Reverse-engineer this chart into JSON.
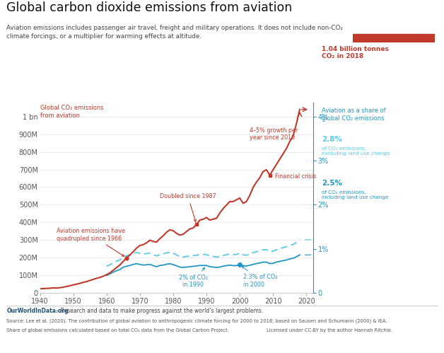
{
  "title": "Global carbon dioxide emissions from aviation",
  "subtitle1": "Aviation emissions includes passenger air travel, freight and military operations. It does not include non-CO₂",
  "subtitle2": "climate forcings, or a multiplier for warming effects at altitude.",
  "bg_color": "#ffffff",
  "red_color": "#c0392b",
  "blue_solid_color": "#2196c4",
  "blue_dashed_color": "#5bc8e8",
  "grid_color": "#e8e8e8",
  "years_red": [
    1940,
    1941,
    1942,
    1943,
    1944,
    1945,
    1946,
    1947,
    1948,
    1949,
    1950,
    1951,
    1952,
    1953,
    1954,
    1955,
    1956,
    1957,
    1958,
    1959,
    1960,
    1961,
    1962,
    1963,
    1964,
    1965,
    1966,
    1967,
    1968,
    1969,
    1970,
    1971,
    1972,
    1973,
    1974,
    1975,
    1976,
    1977,
    1978,
    1979,
    1980,
    1981,
    1982,
    1983,
    1984,
    1985,
    1986,
    1987,
    1988,
    1989,
    1990,
    1991,
    1992,
    1993,
    1994,
    1995,
    1996,
    1997,
    1998,
    1999,
    2000,
    2001,
    2002,
    2003,
    2004,
    2005,
    2006,
    2007,
    2008,
    2009,
    2010,
    2011,
    2012,
    2013,
    2014,
    2015,
    2016,
    2017,
    2018
  ],
  "values_red_M": [
    24,
    25,
    26,
    27,
    29,
    28,
    30,
    33,
    37,
    41,
    46,
    50,
    55,
    60,
    65,
    71,
    77,
    83,
    88,
    95,
    104,
    114,
    129,
    144,
    159,
    179,
    199,
    215,
    234,
    254,
    269,
    274,
    284,
    299,
    292,
    288,
    308,
    324,
    344,
    358,
    353,
    338,
    328,
    333,
    348,
    363,
    368,
    388,
    413,
    418,
    428,
    413,
    418,
    423,
    453,
    478,
    498,
    518,
    518,
    528,
    538,
    508,
    518,
    553,
    598,
    628,
    653,
    688,
    698,
    668,
    698,
    728,
    758,
    788,
    818,
    858,
    888,
    958,
    1040
  ],
  "years_blue": [
    1960,
    1961,
    1962,
    1963,
    1964,
    1965,
    1966,
    1967,
    1968,
    1969,
    1970,
    1971,
    1972,
    1973,
    1974,
    1975,
    1976,
    1977,
    1978,
    1979,
    1980,
    1981,
    1982,
    1983,
    1984,
    1985,
    1986,
    1987,
    1988,
    1989,
    1990,
    1991,
    1992,
    1993,
    1994,
    1995,
    1996,
    1997,
    1998,
    1999,
    2000,
    2001,
    2002,
    2003,
    2004,
    2005,
    2006,
    2007,
    2008,
    2009,
    2010,
    2011,
    2012,
    2013,
    2014,
    2015,
    2016,
    2017,
    2018
  ],
  "values_blue_solid_M": [
    100,
    108,
    118,
    126,
    133,
    146,
    152,
    156,
    162,
    166,
    162,
    158,
    160,
    162,
    155,
    149,
    156,
    158,
    163,
    166,
    161,
    154,
    147,
    145,
    147,
    149,
    151,
    153,
    156,
    156,
    156,
    149,
    147,
    145,
    147,
    152,
    155,
    158,
    155,
    155,
    162,
    155,
    153,
    157,
    162,
    167,
    170,
    175,
    175,
    167,
    168,
    175,
    179,
    183,
    187,
    193,
    197,
    205,
    216
  ],
  "values_blue_dashed_M": [
    152,
    160,
    170,
    180,
    188,
    204,
    212,
    217,
    226,
    229,
    225,
    221,
    223,
    226,
    217,
    210,
    218,
    221,
    227,
    231,
    225,
    216,
    207,
    204,
    207,
    210,
    212,
    214,
    218,
    218,
    218,
    209,
    207,
    204,
    207,
    212,
    217,
    221,
    218,
    218,
    226,
    217,
    214,
    220,
    228,
    234,
    238,
    245,
    245,
    234,
    237,
    245,
    251,
    257,
    262,
    270,
    275,
    286,
    302
  ],
  "xticks": [
    1940,
    1950,
    1960,
    1970,
    1980,
    1990,
    2000,
    2010,
    2020
  ],
  "yticks_left_M": [
    0,
    100,
    200,
    300,
    400,
    500,
    600,
    700,
    800,
    900,
    1000
  ],
  "ytick_labels_left": [
    "0",
    "100M",
    "200M",
    "300M",
    "400M",
    "500M",
    "600M",
    "700M",
    "800M",
    "900M",
    "1 bn"
  ],
  "yticks_right": [
    0,
    1,
    2,
    3,
    4
  ],
  "ytick_labels_right": [
    "0",
    "1%",
    "2%",
    "3%",
    "4%"
  ],
  "footer_bold": "OurWorldInData.org",
  "footer1": " – Research and data to make progress against the world’s largest problems.",
  "footer2": "Source: Lee et al. (2020). The contribution of global aviation to anthropogenic climate forcing for 2000 to 2018; based on Sausen and Schumann (2000) & IEA.",
  "footer3": "Share of global emissions calculated based on total CO₂ data from the Global Carbon Project.",
  "footer4": "Licensed under CC-BY by the author Hannah Ritchie."
}
